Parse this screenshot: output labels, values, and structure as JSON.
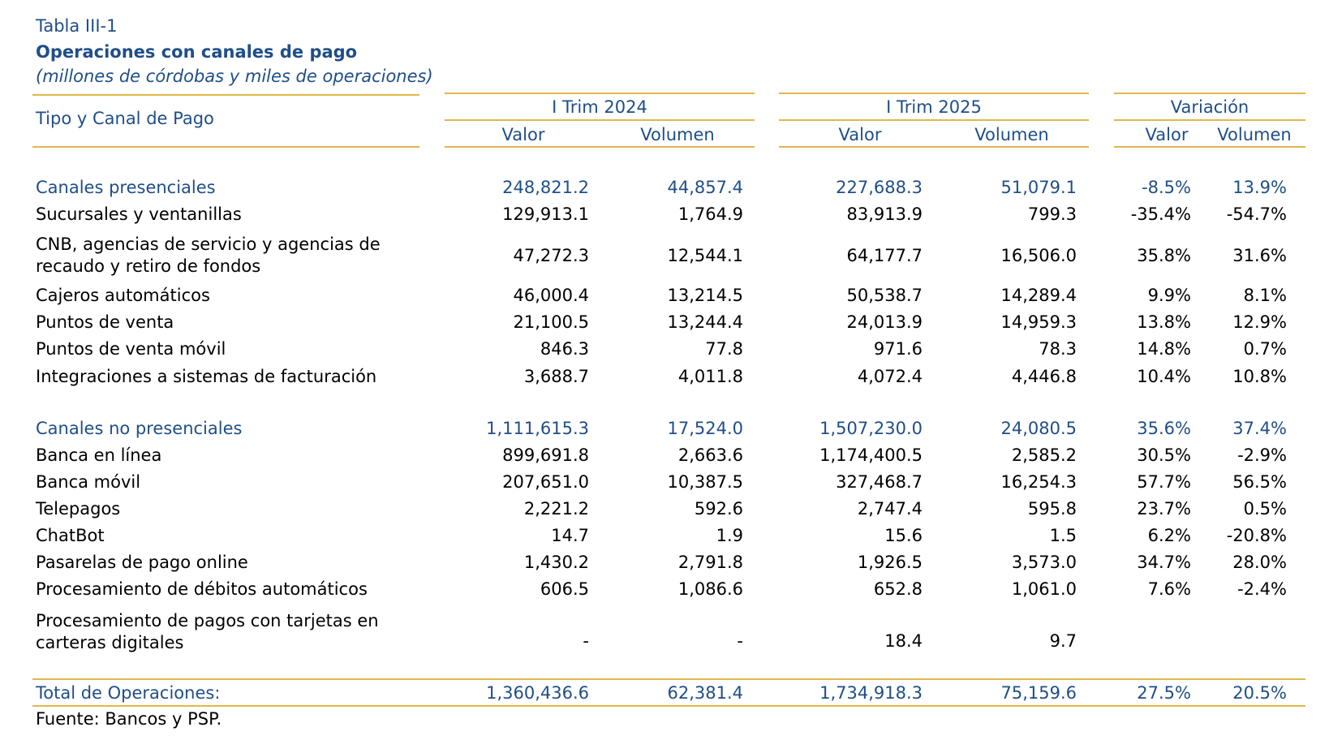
{
  "caption": "Tabla III-1",
  "title": "Operaciones con canales de pago",
  "subtitle": "(millones de córdobas y miles de operaciones)",
  "header": {
    "row_label": "Tipo y Canal de Pago",
    "groups": [
      "I Trim 2024",
      "I Trim 2025",
      "Variación"
    ],
    "subcols": [
      "Valor",
      "Volumen",
      "Valor",
      "Volumen",
      "Valor",
      "Volumen"
    ]
  },
  "rows": [
    {
      "label": "Canales presenciales",
      "values": [
        "248,821.2",
        "44,857.4",
        "227,688.3",
        "51,079.1",
        "-8.5%",
        "13.9%"
      ]
    },
    {
      "label": "Sucursales y ventanillas",
      "values": [
        "129,913.1",
        "1,764.9",
        "83,913.9",
        "799.3",
        "-35.4%",
        "-54.7%"
      ]
    },
    {
      "label": "CNB, agencias de servicio y agencias de recaudo y retiro de fondos",
      "values": [
        "47,272.3",
        "12,544.1",
        "64,177.7",
        "16,506.0",
        "35.8%",
        "31.6%"
      ]
    },
    {
      "label": "Cajeros automáticos",
      "values": [
        "46,000.4",
        "13,214.5",
        "50,538.7",
        "14,289.4",
        "9.9%",
        "8.1%"
      ]
    },
    {
      "label": "Puntos de venta",
      "values": [
        "21,100.5",
        "13,244.4",
        "24,013.9",
        "14,959.3",
        "13.8%",
        "12.9%"
      ]
    },
    {
      "label": "Puntos de venta móvil",
      "values": [
        "846.3",
        "77.8",
        "971.6",
        "78.3",
        "14.8%",
        "0.7%"
      ]
    },
    {
      "label": "Integraciones a sistemas de facturación",
      "values": [
        "3,688.7",
        "4,011.8",
        "4,072.4",
        "4,446.8",
        "10.4%",
        "10.8%"
      ]
    },
    {
      "label": "Canales no presenciales",
      "values": [
        "1,111,615.3",
        "17,524.0",
        "1,507,230.0",
        "24,080.5",
        "35.6%",
        "37.4%"
      ]
    },
    {
      "label": "Banca en línea",
      "values": [
        "899,691.8",
        "2,663.6",
        "1,174,400.5",
        "2,585.2",
        "30.5%",
        "-2.9%"
      ]
    },
    {
      "label": "Banca móvil",
      "values": [
        "207,651.0",
        "10,387.5",
        "327,468.7",
        "16,254.3",
        "57.7%",
        "56.5%"
      ]
    },
    {
      "label": "Telepagos",
      "values": [
        "2,221.2",
        "592.6",
        "2,747.4",
        "595.8",
        "23.7%",
        "0.5%"
      ]
    },
    {
      "label": "ChatBot",
      "values": [
        "14.7",
        "1.9",
        "15.6",
        "1.5",
        "6.2%",
        "-20.8%"
      ]
    },
    {
      "label": "Pasarelas de pago online",
      "values": [
        "1,430.2",
        "2,791.8",
        "1,926.5",
        "3,573.0",
        "34.7%",
        "28.0%"
      ]
    },
    {
      "label": "Procesamiento de débitos automáticos",
      "values": [
        "606.5",
        "1,086.6",
        "652.8",
        "1,061.0",
        "7.6%",
        "-2.4%"
      ]
    },
    {
      "label": "Procesamiento de pagos con tarjetas en carteras digitales",
      "values": [
        "-",
        "-",
        "18.4",
        "9.7",
        "",
        ""
      ]
    }
  ],
  "total": {
    "label": "Total de Operaciones:",
    "values": [
      "1,360,436.6",
      "62,381.4",
      "1,734,918.3",
      "75,159.6",
      "27.5%",
      "20.5%"
    ]
  },
  "footer": "Fuente: Bancos y PSP.",
  "colors": {
    "accent": "#1f4e89",
    "rule": "#e0b74a",
    "text": "#000000"
  }
}
